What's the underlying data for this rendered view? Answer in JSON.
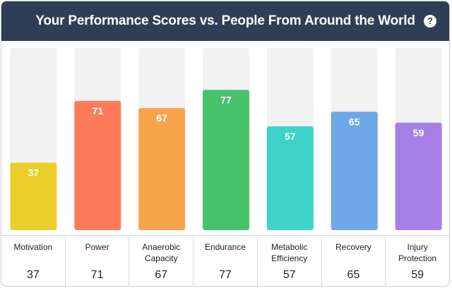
{
  "title": "Your Performance Scores vs. People From Around the World",
  "help_icon": "?",
  "chart_data": {
    "type": "bar",
    "ylim": [
      0,
      100
    ],
    "categories": [
      "Motivation",
      "Power",
      "Anaerobic Capacity",
      "Endurance",
      "Metabolic Efficiency",
      "Recovery",
      "Injury Protection"
    ],
    "values": [
      37,
      71,
      67,
      77,
      57,
      65,
      59
    ],
    "colors": [
      "#ecce2a",
      "#fd7b59",
      "#f7a54a",
      "#46c36a",
      "#3ed3c8",
      "#6fa8e8",
      "#a57fe6"
    ],
    "track_color": "#f2f2f2"
  }
}
